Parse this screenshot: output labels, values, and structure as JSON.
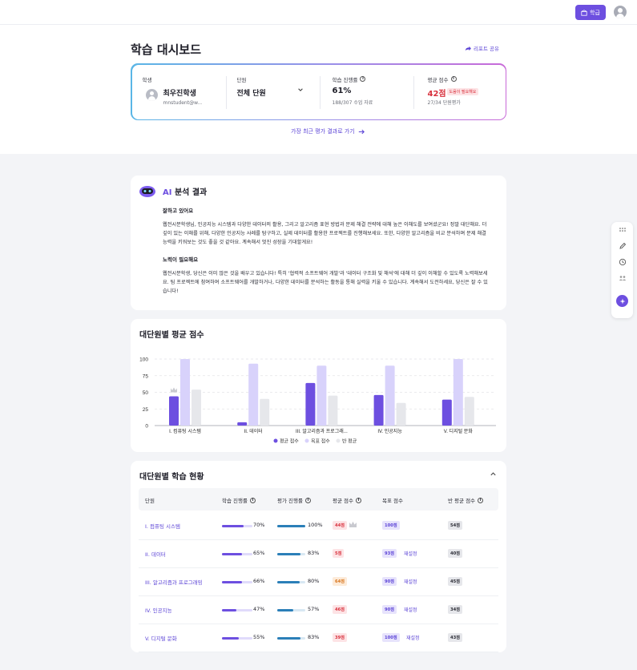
{
  "topbar": {
    "school_label": "학급"
  },
  "page": {
    "title": "학습 대시보드",
    "share_label": "리포트 공유",
    "recent_link": "가장 최근 평가 결과로 가기"
  },
  "summary": {
    "student": {
      "label": "학생",
      "name": "최우진학생",
      "email": "mnstudent@w..."
    },
    "unit": {
      "label": "단원",
      "value": "전체 단원"
    },
    "progress": {
      "label": "학습 진행률",
      "value": "61%",
      "detail": "188/307 수업 자료"
    },
    "score": {
      "label": "평균 점수",
      "value": "42점",
      "badge": "도움이 필요해요",
      "detail": "27/34 단원평가"
    }
  },
  "ai": {
    "title_accent": "AI",
    "title_rest": " 분석 결과",
    "good_head": "잘하고 있어요",
    "good_text": "웹전시분학생님, 인공지능 시스템과 다양한 데이터의 활용, 그리고 알고리즘 표현 방법과 문제 해결 전략에 대해 높은 이해도를 보여셨군요! 정말 대단해요. 더 깊이 있는 이해를 위해, 다양한 인공지능 사례를 탐구하고, 실제 데이터를 활용한 프로젝트를 진행해보세요. 또한, 다양한 알고리즘을 비교 분석하며 문제 해결 능력을 키워보는 것도 좋을 것 같아요. 계속해서 멋진 성장을 기대할게요!",
    "effort_head": "노력이 필요해요",
    "effort_text": "웹전시분학생, 당신은 이미 많은 것을 배우고 있습니다! 특히 '협력적 소프트웨어 개발'과 '데이터 구조화 및 해석'에 대해 더 깊이 이해할 수 있도록 노력해보세요. 팀 프로젝트에 참여하여 소프트웨어를 개발하거나, 다양한 데이터를 분석하는 활동을 통해 실력을 키울 수 있습니다. 계속해서 도전하세요, 당신은 잘 수 있습니다!"
  },
  "chart": {
    "title": "대단원별 평균 점수"
  },
  "chart_data": {
    "type": "bar",
    "categories": [
      "I. 컴퓨팅 시스템",
      "II. 데이터",
      "III. 알고리즘과 프로그래...",
      "IV. 인공지능",
      "V. 디지털 문화"
    ],
    "series": [
      {
        "name": "평균 점수",
        "values": [
          44,
          5,
          64,
          46,
          39
        ],
        "color": "#6d4fe0"
      },
      {
        "name": "목표 점수",
        "values": [
          100,
          93,
          90,
          90,
          100
        ],
        "color": "#d8d2fb"
      },
      {
        "name": "반 평균",
        "values": [
          54,
          40,
          45,
          34,
          43
        ],
        "color": "#e6e7eb"
      }
    ],
    "yticks": [
      0,
      25,
      50,
      75,
      100
    ],
    "ylim": [
      0,
      100
    ],
    "crown_category": 0,
    "legend_position": "bottom"
  },
  "table": {
    "title": "대단원별 학습 현황",
    "headers": {
      "unit": "단원",
      "learn": "학습 진행률",
      "eval": "평가 진행률",
      "avg": "평균 점수",
      "goal": "목표 점수",
      "class_avg": "반 평균 점수"
    },
    "reset_label": "재설정",
    "rows": [
      {
        "unit": "I. 컴퓨팅 시스템",
        "learn": 70,
        "learn_label": "70%",
        "eval": 100,
        "eval_label": "100%",
        "avg": "44점",
        "avg_tone": "red",
        "crown": true,
        "goal": "100점",
        "reset": false,
        "class_avg": "54점"
      },
      {
        "unit": "II. 데이터",
        "learn": 65,
        "learn_label": "65%",
        "eval": 83,
        "eval_label": "83%",
        "avg": "5점",
        "avg_tone": "red",
        "crown": false,
        "goal": "93점",
        "reset": true,
        "class_avg": "40점"
      },
      {
        "unit": "III. 알고리즘과 프로그래밍",
        "learn": 66,
        "learn_label": "66%",
        "eval": 80,
        "eval_label": "80%",
        "avg": "64점",
        "avg_tone": "orange",
        "crown": false,
        "goal": "90점",
        "reset": true,
        "class_avg": "45점"
      },
      {
        "unit": "IV. 인공지능",
        "learn": 47,
        "learn_label": "47%",
        "eval": 57,
        "eval_label": "57%",
        "avg": "46점",
        "avg_tone": "red",
        "crown": false,
        "goal": "90점",
        "reset": true,
        "class_avg": "34점"
      },
      {
        "unit": "V. 디지털 문화",
        "learn": 55,
        "learn_label": "55%",
        "eval": 83,
        "eval_label": "83%",
        "avg": "39점",
        "avg_tone": "red",
        "crown": false,
        "goal": "100점",
        "reset": true,
        "class_avg": "43점"
      }
    ]
  },
  "colors": {
    "accent": "#6d4fe0",
    "eval_bar": "#2b7fb8",
    "danger": "#d8313d"
  }
}
